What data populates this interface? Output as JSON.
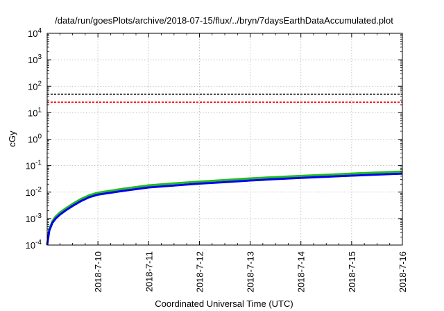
{
  "chart_data": {
    "type": "line",
    "title": "/data/run/goesPlots/archive/2018-07-15/flux/../bryn/7daysEarthDataAccumulated.plot",
    "xlabel": "Coordinated Universal Time (UTC)",
    "ylabel": "cGy",
    "y_scale": "log",
    "ylim": [
      0.0001,
      10000
    ],
    "xlim": [
      "2018-07-09",
      "2018-07-16"
    ],
    "grid": true,
    "legend": "none",
    "x_tick_labels": [
      "2018-7-10",
      "2018-7-11",
      "2018-7-12",
      "2018-7-13",
      "2018-7-14",
      "2018-7-15",
      "2018-7-16"
    ],
    "y_ticks": [
      {
        "value": 0.0001,
        "base": "10",
        "exp": "-4"
      },
      {
        "value": 0.001,
        "base": "10",
        "exp": "-3"
      },
      {
        "value": 0.01,
        "base": "10",
        "exp": "-2"
      },
      {
        "value": 0.1,
        "base": "10",
        "exp": "-1"
      },
      {
        "value": 1,
        "base": "10",
        "exp": "0"
      },
      {
        "value": 10,
        "base": "10",
        "exp": "1"
      },
      {
        "value": 100,
        "base": "10",
        "exp": "2"
      },
      {
        "value": 1000,
        "base": "10",
        "exp": "3"
      },
      {
        "value": 10000,
        "base": "10",
        "exp": "4"
      }
    ],
    "thresholds": [
      {
        "value": 50,
        "color": "#000000",
        "style": "dashed"
      },
      {
        "value": 25,
        "color": "#ff0000",
        "style": "dashed"
      }
    ],
    "series": [
      {
        "color": "#22bb22",
        "x": [
          "2018-07-09T00:00",
          "2018-07-09T01:00",
          "2018-07-09T02:30",
          "2018-07-09T04:00",
          "2018-07-09T06:00",
          "2018-07-09T09:00",
          "2018-07-09T12:00",
          "2018-07-09T16:00",
          "2018-07-09T20:00",
          "2018-07-10T00:00",
          "2018-07-10T12:00",
          "2018-07-11T00:00",
          "2018-07-11T12:00",
          "2018-07-12T00:00",
          "2018-07-12T12:00",
          "2018-07-13T00:00",
          "2018-07-13T12:00",
          "2018-07-14T00:00",
          "2018-07-14T12:00",
          "2018-07-15T00:00",
          "2018-07-15T12:00",
          "2018-07-16T00:00"
        ],
        "y": [
          0.0001,
          0.0004,
          0.0008,
          0.0012,
          0.0017,
          0.0025,
          0.0036,
          0.0055,
          0.0077,
          0.0095,
          0.0135,
          0.018,
          0.0215,
          0.025,
          0.0285,
          0.033,
          0.037,
          0.041,
          0.045,
          0.05,
          0.055,
          0.06
        ]
      },
      {
        "color": "#0000ee",
        "x": [
          "2018-07-09T00:00",
          "2018-07-09T01:00",
          "2018-07-09T02:30",
          "2018-07-09T04:00",
          "2018-07-09T06:00",
          "2018-07-09T09:00",
          "2018-07-09T12:00",
          "2018-07-09T16:00",
          "2018-07-09T20:00",
          "2018-07-10T00:00",
          "2018-07-10T12:00",
          "2018-07-11T00:00",
          "2018-07-11T12:00",
          "2018-07-12T00:00",
          "2018-07-12T12:00",
          "2018-07-13T00:00",
          "2018-07-13T12:00",
          "2018-07-14T00:00",
          "2018-07-14T12:00",
          "2018-07-15T00:00",
          "2018-07-15T12:00",
          "2018-07-16T00:00"
        ],
        "y": [
          0.0001,
          0.00035,
          0.0007,
          0.001,
          0.0014,
          0.0021,
          0.003,
          0.0046,
          0.0065,
          0.008,
          0.0112,
          0.015,
          0.0178,
          0.021,
          0.0238,
          0.0275,
          0.031,
          0.0345,
          0.038,
          0.042,
          0.046,
          0.05
        ]
      }
    ]
  }
}
